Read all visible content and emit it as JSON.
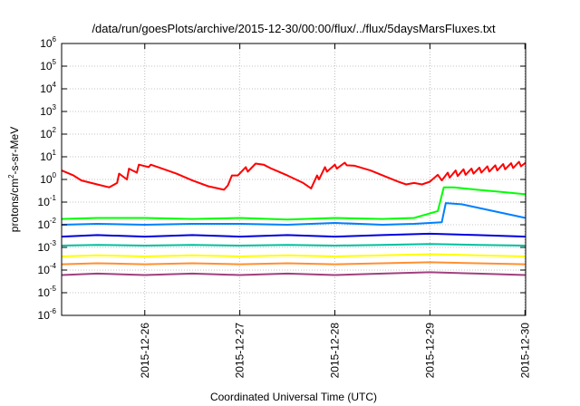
{
  "chart_data": {
    "type": "line",
    "title": "/data/run/goesPlots/archive/2015-12-30/00:00/flux/../flux/5daysMarsFluxes.txt",
    "xlabel": "Coordinated Universal Time (UTC)",
    "ylabel": {
      "base": "protons/cm",
      "exp": "2",
      "rest": "-s-sr-MeV"
    },
    "xlim": [
      "2015-12-25 03:00",
      "2015-12-30 00:10"
    ],
    "ylim": [
      1e-06,
      1000000.0
    ],
    "yscale": "log",
    "grid": true,
    "legend": "none",
    "x_ticks": [
      "2015-12-26",
      "2015-12-27",
      "2015-12-28",
      "2015-12-29",
      "2015-12-30"
    ],
    "y_ticks": [
      {
        "base": "10",
        "exp": "-6",
        "value": 1e-06
      },
      {
        "base": "10",
        "exp": "-5",
        "value": 1e-05
      },
      {
        "base": "10",
        "exp": "-4",
        "value": 0.0001
      },
      {
        "base": "10",
        "exp": "-3",
        "value": 0.001
      },
      {
        "base": "10",
        "exp": "-2",
        "value": 0.01
      },
      {
        "base": "10",
        "exp": "-1",
        "value": 0.1
      },
      {
        "base": "10",
        "exp": "0",
        "value": 1
      },
      {
        "base": "10",
        "exp": "1",
        "value": 10
      },
      {
        "base": "10",
        "exp": "2",
        "value": 100
      },
      {
        "base": "10",
        "exp": "3",
        "value": 1000
      },
      {
        "base": "10",
        "exp": "4",
        "value": 10000
      },
      {
        "base": "10",
        "exp": "5",
        "value": 100000
      },
      {
        "base": "10",
        "exp": "6",
        "value": 1000000
      }
    ],
    "series": [
      {
        "color": "#ff0000",
        "x": [
          "2015-12-25 03:00",
          "2015-12-25 06:00",
          "2015-12-25 08:00",
          "2015-12-25 12:00",
          "2015-12-25 15:00",
          "2015-12-25 17:00",
          "2015-12-25 17:30",
          "2015-12-25 19:30",
          "2015-12-25 20:00",
          "2015-12-25 22:00",
          "2015-12-25 22:30",
          "2015-12-26 01:00",
          "2015-12-26 01:30",
          "2015-12-26 04:00",
          "2015-12-26 08:00",
          "2015-12-26 12:00",
          "2015-12-26 16:00",
          "2015-12-26 20:00",
          "2015-12-26 21:00",
          "2015-12-26 22:00",
          "2015-12-26 23:30",
          "2015-12-27 01:30",
          "2015-12-27 02:00",
          "2015-12-27 04:00",
          "2015-12-27 06:00",
          "2015-12-27 08:00",
          "2015-12-27 12:00",
          "2015-12-27 16:00",
          "2015-12-27 18:00",
          "2015-12-27 19:30",
          "2015-12-27 20:00",
          "2015-12-27 21:30",
          "2015-12-27 22:00",
          "2015-12-28 00:00",
          "2015-12-28 00:30",
          "2015-12-28 02:30",
          "2015-12-28 03:00",
          "2015-12-28 05:00",
          "2015-12-28 09:00",
          "2015-12-28 13:00",
          "2015-12-28 16:00",
          "2015-12-28 18:00",
          "2015-12-28 20:00",
          "2015-12-28 22:00",
          "2015-12-29 00:00",
          "2015-12-29 02:00",
          "2015-12-29 03:00",
          "2015-12-29 04:30",
          "2015-12-29 05:00",
          "2015-12-29 06:30",
          "2015-12-29 07:00",
          "2015-12-29 08:30",
          "2015-12-29 09:00",
          "2015-12-29 10:30",
          "2015-12-29 11:00",
          "2015-12-29 12:30",
          "2015-12-29 13:00",
          "2015-12-29 14:30",
          "2015-12-29 15:00",
          "2015-12-29 16:30",
          "2015-12-29 17:00",
          "2015-12-29 18:30",
          "2015-12-29 19:00",
          "2015-12-29 20:30",
          "2015-12-29 21:00",
          "2015-12-29 22:30",
          "2015-12-29 23:00",
          "2015-12-30 00:10"
        ],
        "y": [
          2.5,
          1.5,
          0.9,
          0.6,
          0.45,
          0.7,
          1.8,
          1.0,
          3.0,
          2.0,
          4.5,
          3.5,
          4.5,
          3.2,
          1.8,
          0.9,
          0.5,
          0.35,
          0.55,
          1.5,
          1.5,
          3.5,
          2.2,
          5.0,
          4.5,
          3.0,
          1.5,
          0.7,
          0.4,
          1.5,
          1.0,
          3.5,
          2.2,
          4.5,
          3.0,
          5.5,
          4.2,
          4.0,
          2.5,
          1.3,
          0.8,
          0.6,
          0.7,
          0.6,
          0.8,
          1.6,
          0.9,
          2.0,
          1.2,
          2.5,
          1.4,
          2.8,
          1.6,
          3.0,
          1.8,
          3.3,
          2.0,
          3.8,
          2.2,
          4.2,
          2.5,
          4.8,
          2.8,
          5.2,
          3.2,
          6.0,
          3.8,
          5.5
        ]
      },
      {
        "color": "#00ff00",
        "x": [
          "2015-12-25 03:00",
          "2015-12-25 12:00",
          "2015-12-26 00:00",
          "2015-12-26 12:00",
          "2015-12-27 00:00",
          "2015-12-27 12:00",
          "2015-12-28 00:00",
          "2015-12-28 12:00",
          "2015-12-28 20:00",
          "2015-12-29 02:00",
          "2015-12-29 03:30",
          "2015-12-29 06:00",
          "2015-12-29 12:00",
          "2015-12-29 18:00",
          "2015-12-30 00:10"
        ],
        "y": [
          0.018,
          0.02,
          0.02,
          0.018,
          0.02,
          0.017,
          0.02,
          0.018,
          0.02,
          0.04,
          0.45,
          0.45,
          0.35,
          0.28,
          0.22
        ]
      },
      {
        "color": "#0080ff",
        "x": [
          "2015-12-25 03:00",
          "2015-12-25 12:00",
          "2015-12-26 00:00",
          "2015-12-26 12:00",
          "2015-12-27 00:00",
          "2015-12-27 12:00",
          "2015-12-28 00:00",
          "2015-12-28 12:00",
          "2015-12-28 20:00",
          "2015-12-29 03:00",
          "2015-12-29 04:00",
          "2015-12-29 08:00",
          "2015-12-29 16:00",
          "2015-12-30 00:10"
        ],
        "y": [
          0.01,
          0.011,
          0.01,
          0.011,
          0.011,
          0.01,
          0.012,
          0.01,
          0.011,
          0.013,
          0.09,
          0.08,
          0.04,
          0.02
        ]
      },
      {
        "color": "#0000e0",
        "x": [
          "2015-12-25 03:00",
          "2015-12-25 12:00",
          "2015-12-26 00:00",
          "2015-12-26 12:00",
          "2015-12-27 00:00",
          "2015-12-27 12:00",
          "2015-12-28 00:00",
          "2015-12-28 12:00",
          "2015-12-29 00:00",
          "2015-12-29 12:00",
          "2015-12-30 00:10"
        ],
        "y": [
          0.003,
          0.0035,
          0.003,
          0.0035,
          0.003,
          0.0035,
          0.003,
          0.0035,
          0.004,
          0.0035,
          0.003
        ]
      },
      {
        "color": "#00c0a0",
        "x": [
          "2015-12-25 03:00",
          "2015-12-25 12:00",
          "2015-12-26 00:00",
          "2015-12-26 12:00",
          "2015-12-27 00:00",
          "2015-12-27 12:00",
          "2015-12-28 00:00",
          "2015-12-28 12:00",
          "2015-12-29 00:00",
          "2015-12-29 12:00",
          "2015-12-30 00:10"
        ],
        "y": [
          0.0012,
          0.0013,
          0.0012,
          0.0013,
          0.0012,
          0.0013,
          0.0012,
          0.0013,
          0.0014,
          0.0013,
          0.0012
        ]
      },
      {
        "color": "#ffff00",
        "x": [
          "2015-12-25 03:00",
          "2015-12-25 12:00",
          "2015-12-26 00:00",
          "2015-12-26 12:00",
          "2015-12-27 00:00",
          "2015-12-27 12:00",
          "2015-12-28 00:00",
          "2015-12-28 12:00",
          "2015-12-29 00:00",
          "2015-12-29 12:00",
          "2015-12-30 00:10"
        ],
        "y": [
          0.0004,
          0.00045,
          0.0004,
          0.00045,
          0.0004,
          0.00045,
          0.0004,
          0.00045,
          0.0005,
          0.00045,
          0.0004
        ]
      },
      {
        "color": "#ff9030",
        "x": [
          "2015-12-25 03:00",
          "2015-12-25 12:00",
          "2015-12-26 00:00",
          "2015-12-26 12:00",
          "2015-12-27 00:00",
          "2015-12-27 12:00",
          "2015-12-28 00:00",
          "2015-12-28 12:00",
          "2015-12-29 00:00",
          "2015-12-29 12:00",
          "2015-12-30 00:10"
        ],
        "y": [
          0.00018,
          0.0002,
          0.00018,
          0.0002,
          0.00018,
          0.0002,
          0.00018,
          0.0002,
          0.00022,
          0.0002,
          0.00018
        ]
      },
      {
        "color": "#a04080",
        "x": [
          "2015-12-25 03:00",
          "2015-12-25 12:00",
          "2015-12-26 00:00",
          "2015-12-26 12:00",
          "2015-12-27 00:00",
          "2015-12-27 12:00",
          "2015-12-28 00:00",
          "2015-12-28 12:00",
          "2015-12-29 00:00",
          "2015-12-29 12:00",
          "2015-12-30 00:10"
        ],
        "y": [
          6e-05,
          7e-05,
          6e-05,
          7e-05,
          6e-05,
          7e-05,
          6e-05,
          7e-05,
          8e-05,
          7e-05,
          6e-05
        ]
      }
    ]
  }
}
